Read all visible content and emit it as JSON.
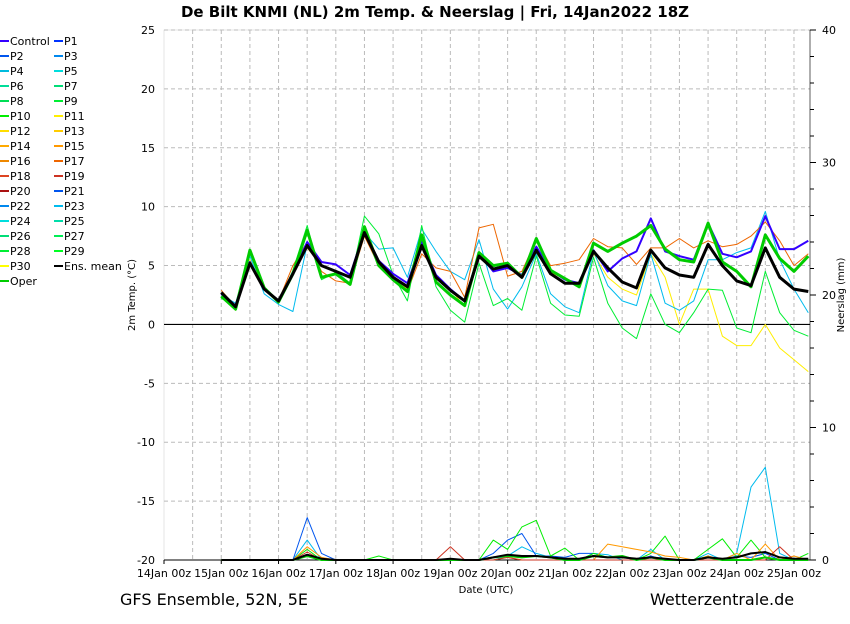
{
  "chart_data": {
    "type": "line",
    "title": "De Bilt KNMI  (NL)  2m Temp. & Neerslag | Fri, 14Jan2022 18Z",
    "xlabel": "Date (UTC)",
    "ylabel": "2m Temp. (°C)",
    "y2label": "Neerslag (mm)",
    "footer_left": "GFS Ensemble, 52N, 5E",
    "footer_right": "Wetterzentrale.de",
    "x_tick_labels": [
      "14Jan 00z",
      "15Jan 00z",
      "16Jan 00z",
      "17Jan 00z",
      "18Jan 00z",
      "19Jan 00z",
      "20Jan 00z",
      "21Jan 00z",
      "22Jan 00z",
      "23Jan 00z",
      "24Jan 00z",
      "25Jan 00z"
    ],
    "x_start": "15Jan 00z",
    "x_step_hours": 6,
    "ylim": [
      -20,
      25
    ],
    "y_ticks": [
      -20,
      -15,
      -10,
      -5,
      0,
      5,
      10,
      15,
      20,
      25
    ],
    "y2lim": [
      0,
      40
    ],
    "y2_ticks": [
      0,
      10,
      20,
      30,
      40
    ],
    "grid": true,
    "legend_position": "left-outside",
    "legend": [
      {
        "name": "Control",
        "color": "#3300ff"
      },
      {
        "name": "P1",
        "color": "#0033ff"
      },
      {
        "name": "P2",
        "color": "#0055ee"
      },
      {
        "name": "P3",
        "color": "#0088ee"
      },
      {
        "name": "P4",
        "color": "#00bbdd"
      },
      {
        "name": "P5",
        "color": "#00dddd"
      },
      {
        "name": "P6",
        "color": "#00dd99"
      },
      {
        "name": "P7",
        "color": "#00dd77"
      },
      {
        "name": "P8",
        "color": "#00dd55"
      },
      {
        "name": "P9",
        "color": "#00ee33"
      },
      {
        "name": "P10",
        "color": "#00ee00"
      },
      {
        "name": "P11",
        "color": "#ffee00"
      },
      {
        "name": "P12",
        "color": "#ffdd00"
      },
      {
        "name": "P13",
        "color": "#ffcc00"
      },
      {
        "name": "P14",
        "color": "#ffaa00"
      },
      {
        "name": "P15",
        "color": "#ff9900"
      },
      {
        "name": "P16",
        "color": "#ee8800"
      },
      {
        "name": "P17",
        "color": "#ee6600"
      },
      {
        "name": "P18",
        "color": "#dd4422"
      },
      {
        "name": "P19",
        "color": "#cc3322"
      },
      {
        "name": "P20",
        "color": "#aa1111"
      },
      {
        "name": "P21",
        "color": "#0055ee"
      },
      {
        "name": "P22",
        "color": "#0088ee"
      },
      {
        "name": "P23",
        "color": "#00bbee"
      },
      {
        "name": "P24",
        "color": "#00dddd"
      },
      {
        "name": "P25",
        "color": "#00ddaa"
      },
      {
        "name": "P26",
        "color": "#00dd77"
      },
      {
        "name": "P27",
        "color": "#00ee55"
      },
      {
        "name": "P28",
        "color": "#00ee33"
      },
      {
        "name": "P29",
        "color": "#00ff22"
      },
      {
        "name": "P30",
        "color": "#ffff00"
      },
      {
        "name": "Ens. mean",
        "color": "#000000"
      },
      {
        "name": "Oper",
        "color": "#00cc00"
      }
    ],
    "temperature_series": [
      {
        "name": "P11",
        "color": "#ffee00",
        "width": 1,
        "values": [
          2.5,
          1.2,
          5.5,
          3,
          2,
          4.5,
          6.5,
          5,
          4.5,
          3.5,
          8,
          5.5,
          4,
          3,
          7,
          4,
          3,
          1.5,
          6,
          4.5,
          5,
          4,
          6,
          4.5,
          3.5,
          3.5,
          6,
          4,
          3,
          2.5,
          6,
          4,
          0,
          3,
          3,
          -1,
          -1.8,
          -1.8,
          0,
          -2,
          -3,
          -4
        ]
      },
      {
        "name": "P23",
        "color": "#00bbee",
        "width": 1,
        "values": [
          2.5,
          1.8,
          5.8,
          2.6,
          1.7,
          1.1,
          6.8,
          5,
          4.5,
          3.5,
          7.8,
          6.4,
          6.5,
          4,
          8.1,
          6.2,
          4.5,
          3.8,
          7.2,
          3,
          1.3,
          3.2,
          6,
          2.6,
          1.5,
          1,
          6.2,
          3.3,
          2,
          1.6,
          6,
          1.8,
          1.2,
          2,
          5.5,
          5.5,
          6.1,
          6.5,
          9.6,
          5.5,
          3,
          1
        ]
      },
      {
        "name": "P17",
        "color": "#ee6600",
        "width": 1,
        "values": [
          2.9,
          1.5,
          5.3,
          3,
          2,
          5,
          7,
          4.5,
          3.7,
          3.5,
          7.5,
          5,
          3.7,
          2.8,
          6,
          4.8,
          4.5,
          2.3,
          8.2,
          8.5,
          4.1,
          4.5,
          7.2,
          5,
          5.2,
          5.5,
          7.3,
          6.6,
          6.5,
          5.1,
          6.5,
          6.5,
          7.3,
          6.5,
          7.1,
          6.6,
          6.8,
          7.5,
          8.7,
          7.1,
          5,
          6
        ]
      },
      {
        "name": "P9",
        "color": "#00ee33",
        "width": 1,
        "values": [
          2.2,
          1.7,
          6.3,
          3.1,
          1.8,
          4.6,
          8.4,
          3.8,
          4.4,
          3.5,
          9.2,
          7.7,
          4.2,
          2,
          8.4,
          3.2,
          1.2,
          0.2,
          5.2,
          1.6,
          2.2,
          1.2,
          5.8,
          1.8,
          0.8,
          0.7,
          5.7,
          1.8,
          -0.3,
          -1.2,
          2.6,
          0,
          -0.7,
          1,
          3,
          2.9,
          -0.3,
          -0.7,
          4.5,
          1,
          -0.5,
          -1
        ]
      },
      {
        "name": "Control",
        "color": "#3300ff",
        "width": 2,
        "values": [
          2.6,
          1.6,
          5.3,
          3,
          2,
          4.4,
          7,
          5.3,
          5.1,
          4.2,
          7.9,
          5.4,
          4.3,
          3.5,
          7,
          4.2,
          3,
          2,
          6,
          4.5,
          4.8,
          4.2,
          6.6,
          4.6,
          3.8,
          3.5,
          6.3,
          4.5,
          5.6,
          6.2,
          9,
          6.2,
          5.8,
          5.5,
          8.6,
          6,
          5.7,
          6.2,
          9.2,
          6.4,
          6.4,
          7.1
        ]
      },
      {
        "name": "Oper",
        "color": "#00cc00",
        "width": 3,
        "values": [
          2.4,
          1.3,
          6.3,
          3.1,
          1.9,
          4.3,
          8,
          4,
          4.3,
          3.4,
          8.3,
          5,
          3.8,
          2.8,
          7.6,
          3.6,
          2.5,
          1.6,
          6.1,
          5,
          5.2,
          4,
          7.3,
          4.6,
          3.9,
          3.2,
          6.9,
          6.2,
          6.9,
          7.5,
          8.4,
          6.4,
          5.5,
          5.3,
          8.6,
          5.3,
          4.5,
          3.2,
          7.6,
          5.6,
          4.5,
          5.8
        ]
      },
      {
        "name": "Ens. mean",
        "color": "#000000",
        "width": 3,
        "values": [
          2.7,
          1.5,
          5.2,
          3,
          2,
          4.3,
          6.7,
          5,
          4.5,
          4,
          7.8,
          5.3,
          4,
          3.2,
          6.7,
          4,
          2.9,
          2,
          5.8,
          4.7,
          5,
          4,
          6.3,
          4.3,
          3.5,
          3.5,
          6.2,
          4.8,
          3.6,
          3.1,
          6.3,
          4.8,
          4.2,
          4,
          6.8,
          5,
          3.7,
          3.3,
          6.5,
          4,
          3,
          2.8
        ]
      }
    ],
    "precipitation_series": [
      {
        "name": "P23",
        "color": "#00bbee",
        "width": 1,
        "values": [
          0,
          0,
          0,
          0,
          0,
          0,
          1.5,
          0,
          0,
          0,
          0,
          0,
          0,
          0,
          0,
          0,
          0,
          0,
          0,
          0,
          0.3,
          1,
          0.5,
          0.2,
          0,
          0,
          0.5,
          0.4,
          0,
          0,
          0.8,
          0,
          0,
          0,
          0.5,
          0,
          0.5,
          5.5,
          7,
          0.5,
          0,
          0
        ]
      },
      {
        "name": "P2",
        "color": "#0055ee",
        "width": 1,
        "values": [
          0,
          0,
          0,
          0,
          0,
          0,
          3.2,
          0.5,
          0,
          0,
          0,
          0,
          0,
          0,
          0,
          0,
          0,
          0,
          0,
          0.5,
          1.5,
          2,
          0.3,
          0.3,
          0.2,
          0.5,
          0.5,
          0.2,
          0.2,
          0,
          0.3,
          0,
          0,
          0,
          0,
          0,
          0.3,
          0.2,
          0.5,
          0,
          0,
          0
        ]
      },
      {
        "name": "P10",
        "color": "#00ee00",
        "width": 1,
        "values": [
          0,
          0,
          0,
          0,
          0,
          0,
          0.8,
          0,
          0,
          0,
          0,
          0.3,
          0,
          0,
          0,
          0,
          0,
          0,
          0,
          1.5,
          0.8,
          2.5,
          3,
          0.3,
          0.9,
          0,
          0.5,
          0.2,
          0.3,
          0,
          0.5,
          1.8,
          0,
          0,
          0.8,
          1.6,
          0.2,
          1.5,
          0.2,
          0,
          0,
          0.5
        ]
      },
      {
        "name": "P15",
        "color": "#ff9900",
        "width": 1,
        "values": [
          0,
          0,
          0,
          0,
          0,
          0,
          1,
          0.2,
          0,
          0,
          0,
          0,
          0,
          0,
          0,
          0,
          0,
          0,
          0,
          0,
          0.2,
          0,
          0,
          0,
          0,
          0,
          0,
          1.2,
          1,
          0.8,
          0.6,
          0.3,
          0.2,
          0,
          0.3,
          0,
          0.5,
          0,
          1.2,
          0,
          0.3,
          0
        ]
      },
      {
        "name": "P19",
        "color": "#cc3322",
        "width": 1,
        "values": [
          0,
          0,
          0,
          0,
          0,
          0,
          0.6,
          0,
          0,
          0,
          0,
          0,
          0,
          0,
          0,
          0,
          1,
          0,
          0,
          0,
          0.2,
          0,
          0,
          0,
          0,
          0,
          0,
          0,
          0,
          0,
          0,
          0,
          0,
          0,
          0,
          0,
          0,
          0,
          0,
          1,
          0,
          0
        ]
      },
      {
        "name": "Oper",
        "color": "#00cc00",
        "width": 2,
        "values": [
          0,
          0,
          0,
          0,
          0,
          0,
          0.3,
          0,
          0,
          0,
          0,
          0,
          0,
          0,
          0,
          0,
          0,
          0,
          0,
          0.2,
          0.3,
          0.2,
          0.3,
          0.2,
          0,
          0,
          0.3,
          0.2,
          0.3,
          0,
          0.2,
          0,
          0,
          0,
          0.2,
          0,
          0,
          0,
          0.2,
          0,
          0,
          0
        ]
      },
      {
        "name": "Ens. mean",
        "color": "#000000",
        "width": 2,
        "values": [
          0,
          0,
          0,
          0,
          0,
          0,
          0.4,
          0.1,
          0,
          0,
          0,
          0,
          0,
          0,
          0,
          0,
          0.1,
          0,
          0,
          0.2,
          0.4,
          0.3,
          0.3,
          0.2,
          0.1,
          0.1,
          0.3,
          0.2,
          0.2,
          0.1,
          0.2,
          0.1,
          0,
          0,
          0.2,
          0.1,
          0.2,
          0.5,
          0.6,
          0.2,
          0.1,
          0.1
        ]
      }
    ]
  }
}
